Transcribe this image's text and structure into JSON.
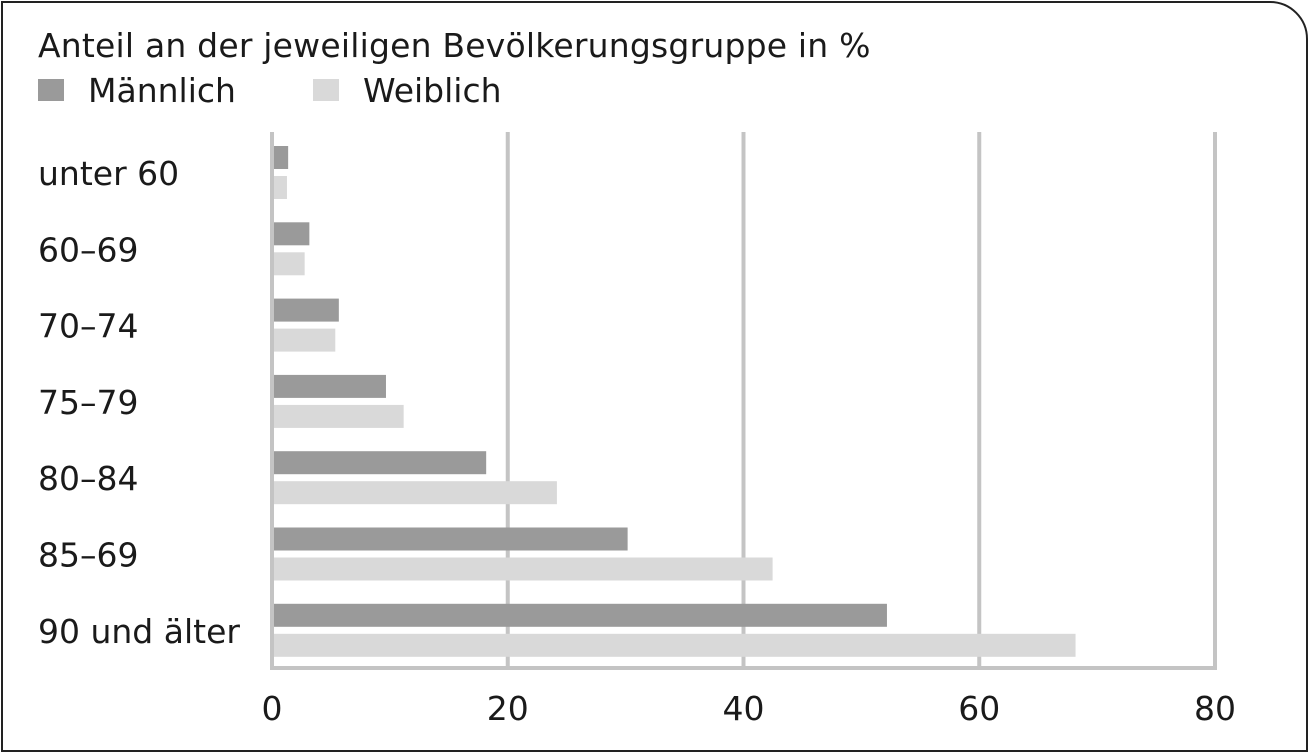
{
  "chart_data": {
    "type": "bar",
    "orientation": "horizontal",
    "title": "Anteil an der jeweiligen Bevölkerungsgruppe in %",
    "categories": [
      "unter 60",
      "60–69",
      "70–74",
      "75–79",
      "80–84",
      "85–69",
      "90 und älter"
    ],
    "series": [
      {
        "name": "Männlich",
        "color": "#9a9a9a",
        "values": [
          1.2,
          3.0,
          5.5,
          9.5,
          18.0,
          30.0,
          52.0
        ]
      },
      {
        "name": "Weiblich",
        "color": "#d9d9d9",
        "values": [
          1.1,
          2.6,
          5.2,
          11.0,
          24.0,
          42.3,
          68.0
        ]
      }
    ],
    "xlim": [
      0,
      80
    ],
    "xticks": [
      "0",
      "20",
      "40",
      "60",
      "80"
    ],
    "grid": true,
    "legend_position": "top-left"
  }
}
